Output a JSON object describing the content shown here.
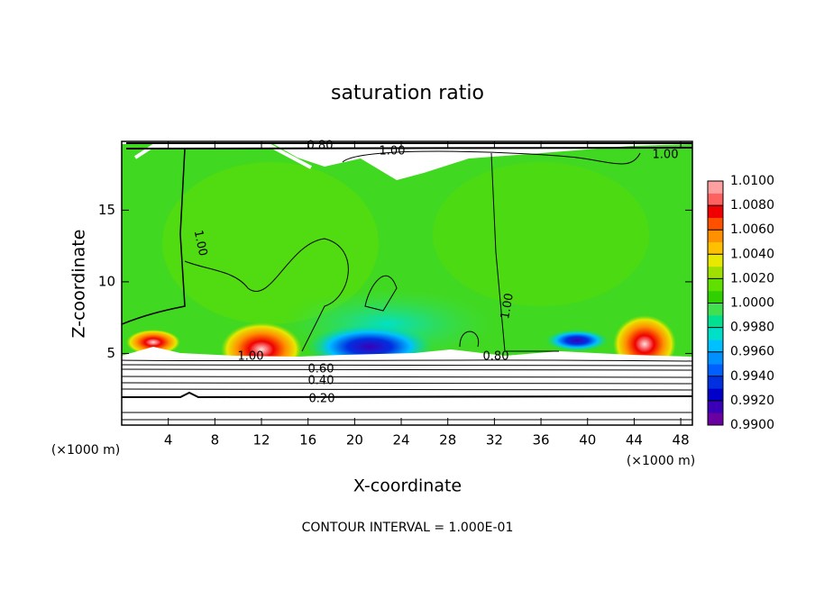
{
  "chart_data": {
    "type": "contour",
    "title": "saturation ratio",
    "x_label": "X-coordinate",
    "y_label": "Z-coordinate",
    "x_unit": "(×1000 m)",
    "x_unit_right": "(×1000 m)",
    "footnote": "CONTOUR INTERVAL = 1.000E-01",
    "xlim": [
      0,
      49
    ],
    "ylim": [
      0,
      19.8
    ],
    "xticks": [
      4,
      8,
      12,
      16,
      20,
      24,
      28,
      32,
      36,
      40,
      44,
      48
    ],
    "yticks": [
      5,
      10,
      15
    ],
    "contour_labels": [
      "0.80",
      "1.00",
      "1.00",
      "1.00",
      "1.00",
      "1.00",
      "0.80",
      "0.60",
      "0.40",
      "0.20"
    ],
    "colorbar": {
      "lim": [
        0.99,
        1.01
      ],
      "ticks": [
        {
          "value": 0.99,
          "label": "0.9900"
        },
        {
          "value": 0.992,
          "label": "0.9920"
        },
        {
          "value": 0.994,
          "label": "0.9940"
        },
        {
          "value": 0.996,
          "label": "0.9960"
        },
        {
          "value": 0.998,
          "label": "0.9980"
        },
        {
          "value": 1.0,
          "label": "1.0000"
        },
        {
          "value": 1.002,
          "label": "1.0020"
        },
        {
          "value": 1.004,
          "label": "1.0040"
        },
        {
          "value": 1.006,
          "label": "1.0060"
        },
        {
          "value": 1.008,
          "label": "1.0080"
        },
        {
          "value": 1.01,
          "label": "1.0100"
        }
      ],
      "colors": [
        "#6a00a0",
        "#3a00b8",
        "#0000c8",
        "#0030e0",
        "#0060ff",
        "#0090ff",
        "#00c0ff",
        "#00e0c8",
        "#00e090",
        "#40e050",
        "#30d000",
        "#60e000",
        "#a0e000",
        "#e8e800",
        "#ffc000",
        "#ff9000",
        "#ff5000",
        "#f00000",
        "#ff6060",
        "#ffa0a0"
      ]
    }
  }
}
